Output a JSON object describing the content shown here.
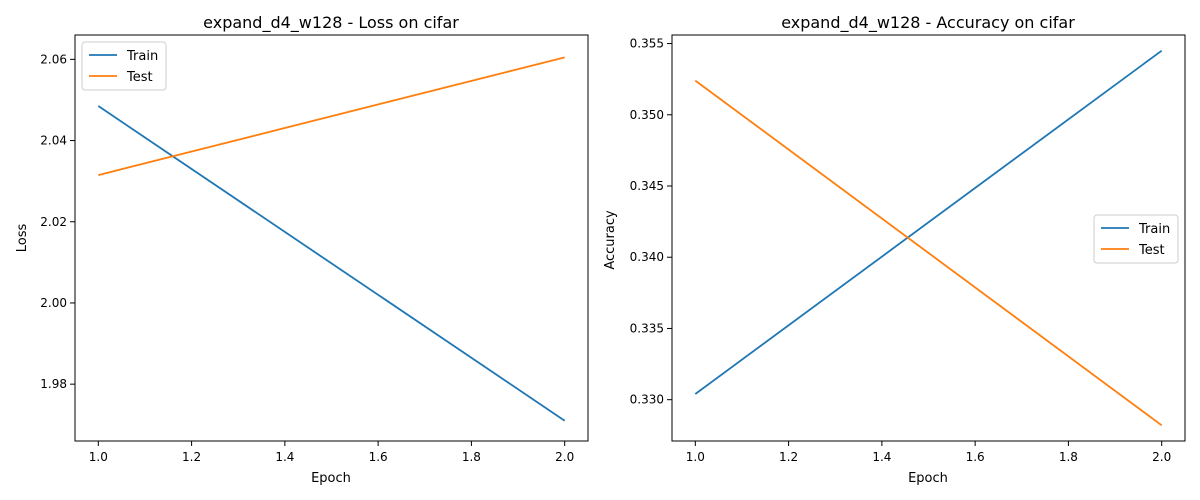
{
  "colors": {
    "train": "#1f77b4",
    "test": "#ff7f0e"
  },
  "chart_data": [
    {
      "type": "line",
      "title": "expand_d4_w128 - Loss on cifar",
      "xlabel": "Epoch",
      "ylabel": "Loss",
      "xlim": [
        0.95,
        2.05
      ],
      "ylim": [
        1.966,
        2.066
      ],
      "xticks": [
        1.0,
        1.2,
        1.4,
        1.6,
        1.8,
        2.0
      ],
      "xtick_labels": [
        "1.0",
        "1.2",
        "1.4",
        "1.6",
        "1.8",
        "2.0"
      ],
      "yticks": [
        1.98,
        2.0,
        2.02,
        2.04,
        2.06
      ],
      "ytick_labels": [
        "1.98",
        "2.00",
        "2.02",
        "2.04",
        "2.06"
      ],
      "legend": "upper-left",
      "grid": false,
      "x": [
        1.0,
        2.0
      ],
      "series": [
        {
          "name": "Train",
          "values": [
            2.0485,
            1.971
          ]
        },
        {
          "name": "Test",
          "values": [
            2.0315,
            2.0605
          ]
        }
      ]
    },
    {
      "type": "line",
      "title": "expand_d4_w128 - Accuracy on cifar",
      "xlabel": "Epoch",
      "ylabel": "Accuracy",
      "xlim": [
        0.95,
        2.05
      ],
      "ylim": [
        0.3271,
        0.3556
      ],
      "xticks": [
        1.0,
        1.2,
        1.4,
        1.6,
        1.8,
        2.0
      ],
      "xtick_labels": [
        "1.0",
        "1.2",
        "1.4",
        "1.6",
        "1.8",
        "2.0"
      ],
      "yticks": [
        0.33,
        0.335,
        0.34,
        0.345,
        0.35,
        0.355
      ],
      "ytick_labels": [
        "0.330",
        "0.335",
        "0.340",
        "0.345",
        "0.350",
        "0.355"
      ],
      "legend": "center-right",
      "grid": false,
      "x": [
        1.0,
        2.0
      ],
      "series": [
        {
          "name": "Train",
          "values": [
            0.3304,
            0.3545
          ]
        },
        {
          "name": "Test",
          "values": [
            0.3524,
            0.3282
          ]
        }
      ]
    }
  ]
}
